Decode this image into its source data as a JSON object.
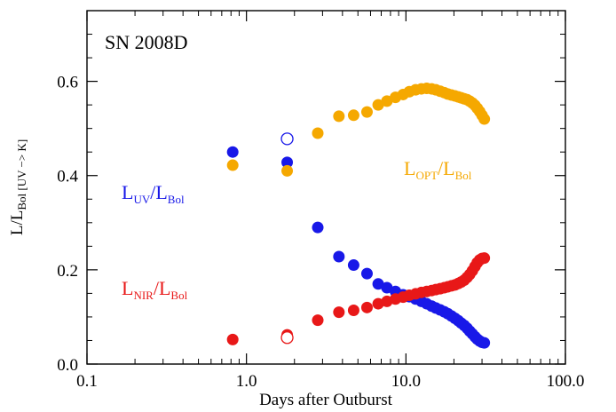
{
  "chart_data": {
    "type": "scatter",
    "x_scale": "log",
    "xlim": [
      0.1,
      100.0
    ],
    "ylim": [
      0.0,
      0.75
    ],
    "x_ticks": [
      0.1,
      1.0,
      10.0,
      100.0
    ],
    "x_tick_labels": [
      "0.1",
      "1.0",
      "10.0",
      "100.0"
    ],
    "y_ticks": [
      0.0,
      0.2,
      0.4,
      0.6
    ],
    "y_tick_labels": [
      "0.0",
      "0.2",
      "0.4",
      "0.6"
    ],
    "xlabel": "Days after Outburst",
    "ylabel": {
      "main": "L/L",
      "sub": "Bol [UV −> K]"
    },
    "title": "SN 2008D",
    "grid": false,
    "series": [
      {
        "name": "L_UV/L_Bol",
        "label_parts": [
          "L",
          "UV",
          "/L",
          "Bol"
        ],
        "color": "#1818e8",
        "points": [
          [
            0.82,
            0.45
          ],
          [
            1.8,
            0.428
          ],
          [
            2.8,
            0.29
          ],
          [
            3.8,
            0.228
          ],
          [
            4.7,
            0.21
          ],
          [
            5.7,
            0.192
          ],
          [
            6.7,
            0.17
          ],
          [
            7.6,
            0.162
          ],
          [
            8.6,
            0.154
          ],
          [
            9.6,
            0.147
          ],
          [
            10.5,
            0.143
          ],
          [
            11.5,
            0.138
          ],
          [
            12.5,
            0.133
          ],
          [
            13.5,
            0.128
          ],
          [
            14.5,
            0.123
          ],
          [
            15.4,
            0.119
          ],
          [
            16.4,
            0.115
          ],
          [
            17.4,
            0.111
          ],
          [
            18.3,
            0.107
          ],
          [
            19.3,
            0.102
          ],
          [
            20.3,
            0.097
          ],
          [
            21.3,
            0.092
          ],
          [
            22.2,
            0.087
          ],
          [
            23.2,
            0.082
          ],
          [
            24.2,
            0.076
          ],
          [
            25.1,
            0.07
          ],
          [
            26.1,
            0.064
          ],
          [
            27.1,
            0.058
          ],
          [
            28.0,
            0.053
          ],
          [
            29.0,
            0.049
          ],
          [
            30.0,
            0.046
          ],
          [
            31.0,
            0.045
          ]
        ],
        "open_points": [
          [
            1.8,
            0.478
          ]
        ]
      },
      {
        "name": "L_OPT/L_Bol",
        "label_parts": [
          "L",
          "OPT",
          "/L",
          "Bol"
        ],
        "color": "#f5a800",
        "points": [
          [
            0.82,
            0.422
          ],
          [
            1.8,
            0.41
          ],
          [
            2.8,
            0.49
          ],
          [
            3.8,
            0.526
          ],
          [
            4.7,
            0.528
          ],
          [
            5.7,
            0.535
          ],
          [
            6.7,
            0.55
          ],
          [
            7.6,
            0.558
          ],
          [
            8.6,
            0.566
          ],
          [
            9.6,
            0.572
          ],
          [
            10.5,
            0.578
          ],
          [
            11.5,
            0.582
          ],
          [
            12.5,
            0.584
          ],
          [
            13.5,
            0.585
          ],
          [
            14.5,
            0.584
          ],
          [
            15.4,
            0.582
          ],
          [
            16.4,
            0.579
          ],
          [
            17.4,
            0.576
          ],
          [
            18.3,
            0.573
          ],
          [
            19.3,
            0.571
          ],
          [
            20.3,
            0.569
          ],
          [
            21.3,
            0.567
          ],
          [
            22.2,
            0.565
          ],
          [
            23.2,
            0.563
          ],
          [
            24.2,
            0.561
          ],
          [
            25.1,
            0.558
          ],
          [
            26.1,
            0.554
          ],
          [
            27.1,
            0.549
          ],
          [
            28.0,
            0.543
          ],
          [
            29.0,
            0.536
          ],
          [
            30.0,
            0.528
          ],
          [
            31.0,
            0.52
          ]
        ],
        "open_points": []
      },
      {
        "name": "L_NIR/L_Bol",
        "label_parts": [
          "L",
          "NIR",
          "/L",
          "Bol"
        ],
        "color": "#e81818",
        "points": [
          [
            0.82,
            0.052
          ],
          [
            1.8,
            0.062
          ],
          [
            2.8,
            0.093
          ],
          [
            3.8,
            0.11
          ],
          [
            4.7,
            0.114
          ],
          [
            5.7,
            0.12
          ],
          [
            6.7,
            0.128
          ],
          [
            7.6,
            0.133
          ],
          [
            8.6,
            0.138
          ],
          [
            9.6,
            0.142
          ],
          [
            10.5,
            0.146
          ],
          [
            11.5,
            0.149
          ],
          [
            12.5,
            0.152
          ],
          [
            13.5,
            0.154
          ],
          [
            14.5,
            0.156
          ],
          [
            15.4,
            0.158
          ],
          [
            16.4,
            0.16
          ],
          [
            17.4,
            0.162
          ],
          [
            18.3,
            0.164
          ],
          [
            19.3,
            0.166
          ],
          [
            20.3,
            0.168
          ],
          [
            21.3,
            0.171
          ],
          [
            22.2,
            0.174
          ],
          [
            23.2,
            0.178
          ],
          [
            24.2,
            0.184
          ],
          [
            25.1,
            0.19
          ],
          [
            26.1,
            0.198
          ],
          [
            27.1,
            0.207
          ],
          [
            28.0,
            0.215
          ],
          [
            29.0,
            0.221
          ],
          [
            30.0,
            0.224
          ],
          [
            31.0,
            0.225
          ]
        ],
        "open_points": [
          [
            1.8,
            0.056
          ]
        ]
      }
    ]
  }
}
